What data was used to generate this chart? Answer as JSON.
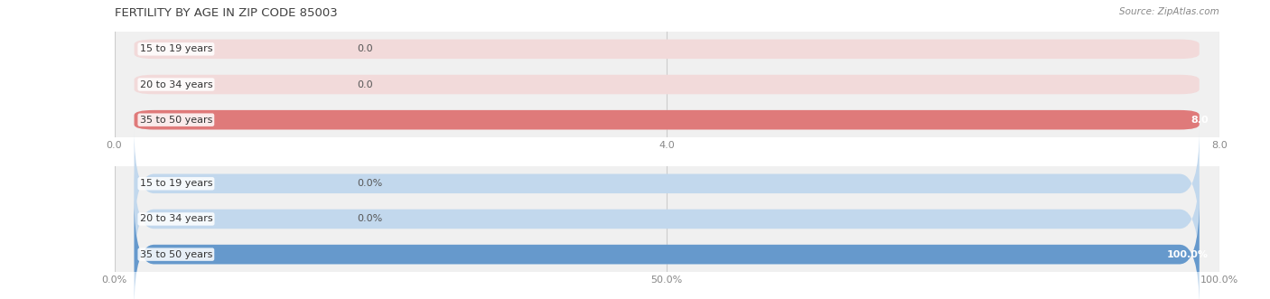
{
  "title": "FERTILITY BY AGE IN ZIP CODE 85003",
  "source": "Source: ZipAtlas.com",
  "top_chart": {
    "categories": [
      "15 to 19 years",
      "20 to 34 years",
      "35 to 50 years"
    ],
    "values": [
      0.0,
      0.0,
      8.0
    ],
    "max_val": 8.0,
    "x_ticks": [
      0.0,
      4.0,
      8.0
    ],
    "x_tick_labels": [
      "0.0",
      "4.0",
      "8.0"
    ],
    "bar_color_full": "#df7a7a",
    "bar_color_empty": "#f2dada"
  },
  "bottom_chart": {
    "categories": [
      "15 to 19 years",
      "20 to 34 years",
      "35 to 50 years"
    ],
    "values": [
      0.0,
      0.0,
      100.0
    ],
    "max_val": 100.0,
    "x_ticks": [
      0.0,
      50.0,
      100.0
    ],
    "x_tick_labels": [
      "0.0%",
      "50.0%",
      "100.0%"
    ],
    "bar_color_full": "#6699cc",
    "bar_color_empty": "#c2d8ed"
  },
  "fig_bg": "#ffffff",
  "axes_bg": "#f0f0f0",
  "bar_height": 0.55,
  "label_font_size": 8.0,
  "title_font_size": 9.5,
  "source_font_size": 7.5,
  "category_font_size": 8.0,
  "tick_color": "#888888",
  "grid_color": "#cccccc",
  "title_color": "#404040",
  "cat_label_color": "#333333",
  "value_label_outside_color": "#555555",
  "value_label_inside_color": "#ffffff"
}
